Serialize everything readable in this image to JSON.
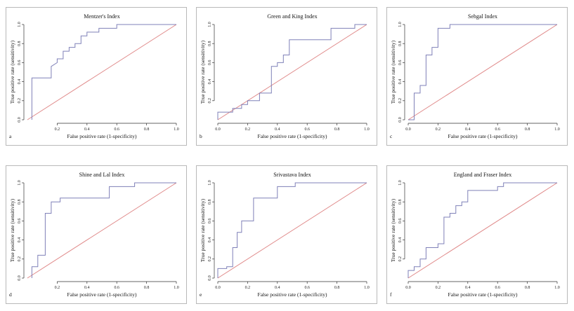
{
  "chart_data": [
    {
      "type": "line",
      "panel_label": "a",
      "title": "Mentzer's Index",
      "xlabel": "False positive rate (1-specificity)",
      "ylabel": "True positive rate (sensitivity)",
      "xlim": [
        0,
        1
      ],
      "ylim": [
        0,
        1
      ],
      "xticks": [
        "0.2",
        "0.4",
        "0.6",
        "0.8",
        "1.0"
      ],
      "yticks": [
        "0.0",
        "0.2",
        "0.4",
        "0.6",
        "0.8",
        "1.0"
      ],
      "series": [
        {
          "color": "#7f80b8",
          "x": [
            0.03,
            0.03,
            0.16,
            0.16,
            0.2,
            0.2,
            0.24,
            0.24,
            0.28,
            0.28,
            0.32,
            0.32,
            0.36,
            0.36,
            0.4,
            0.4,
            0.48,
            0.48,
            0.6,
            0.6,
            0.72,
            0.72,
            0.84,
            0.84,
            1.0
          ],
          "y": [
            0.0,
            0.44,
            0.44,
            0.56,
            0.6,
            0.64,
            0.64,
            0.72,
            0.72,
            0.76,
            0.76,
            0.8,
            0.8,
            0.88,
            0.88,
            0.92,
            0.92,
            0.96,
            0.96,
            1.0,
            1.0,
            1.0,
            1.0,
            1.0,
            1.0
          ]
        },
        {
          "color": "#e08a8a",
          "x": [
            0,
            1
          ],
          "y": [
            0,
            1
          ]
        }
      ]
    },
    {
      "type": "line",
      "panel_label": "b",
      "title": "Green and King Index",
      "xlabel": "False positive rate (1-specificity)",
      "ylabel": "True positive rate (sensitivity)",
      "xlim": [
        0,
        1
      ],
      "ylim": [
        0,
        1
      ],
      "xticks": [
        "0.0",
        "0.2",
        "0.4",
        "0.6",
        "0.8",
        "1.0"
      ],
      "yticks": [
        "0.2",
        "0.4",
        "0.6",
        "0.8",
        "1.0"
      ],
      "series": [
        {
          "color": "#7f80b8",
          "x": [
            0.0,
            0.0,
            0.1,
            0.1,
            0.16,
            0.16,
            0.2,
            0.2,
            0.28,
            0.28,
            0.36,
            0.36,
            0.4,
            0.4,
            0.44,
            0.44,
            0.48,
            0.48,
            0.56,
            0.56,
            0.76,
            0.76,
            0.92,
            0.92,
            1.0
          ],
          "y": [
            0.0,
            0.08,
            0.08,
            0.12,
            0.12,
            0.16,
            0.16,
            0.2,
            0.2,
            0.28,
            0.28,
            0.56,
            0.56,
            0.6,
            0.6,
            0.68,
            0.68,
            0.84,
            0.84,
            0.84,
            0.84,
            0.96,
            0.96,
            1.0,
            1.0
          ]
        },
        {
          "color": "#e08a8a",
          "x": [
            0,
            1
          ],
          "y": [
            0,
            1
          ]
        }
      ]
    },
    {
      "type": "line",
      "panel_label": "c",
      "title": "Sehgal Index",
      "xlabel": "False positive rate (1-specificity)",
      "ylabel": "True positive rate (sensitivity)",
      "xlim": [
        0,
        1
      ],
      "ylim": [
        0,
        1
      ],
      "xticks": [
        "0.0",
        "0.2",
        "0.4",
        "0.6",
        "0.8",
        "1.0"
      ],
      "yticks": [
        "0.0",
        "0.2",
        "0.4",
        "0.6",
        "0.8",
        "1.0"
      ],
      "series": [
        {
          "color": "#7f80b8",
          "x": [
            0.0,
            0.04,
            0.04,
            0.08,
            0.08,
            0.12,
            0.12,
            0.16,
            0.16,
            0.2,
            0.2,
            0.28,
            0.28,
            1.0
          ],
          "y": [
            0.0,
            0.0,
            0.28,
            0.28,
            0.36,
            0.36,
            0.68,
            0.68,
            0.76,
            0.76,
            0.96,
            0.96,
            1.0,
            1.0
          ]
        },
        {
          "color": "#e08a8a",
          "x": [
            0,
            1
          ],
          "y": [
            0,
            1
          ]
        }
      ]
    },
    {
      "type": "line",
      "panel_label": "d",
      "title": "Shine and Lal Index",
      "xlabel": "False positive rate (1-specificity)",
      "ylabel": "True positive rate (sensitivity)",
      "xlim": [
        0,
        1
      ],
      "ylim": [
        0,
        1
      ],
      "xticks": [
        "0.2",
        "0.4",
        "0.6",
        "0.8",
        "1.0"
      ],
      "yticks": [
        "0.0",
        "0.2",
        "0.4",
        "0.6",
        "0.8",
        "1.0"
      ],
      "series": [
        {
          "color": "#7f80b8",
          "x": [
            0.03,
            0.03,
            0.07,
            0.07,
            0.12,
            0.12,
            0.16,
            0.16,
            0.22,
            0.22,
            0.27,
            0.27,
            0.55,
            0.55,
            0.72,
            0.72,
            1.0
          ],
          "y": [
            0.0,
            0.12,
            0.12,
            0.24,
            0.24,
            0.68,
            0.68,
            0.8,
            0.8,
            0.84,
            0.84,
            0.84,
            0.84,
            0.96,
            0.96,
            1.0,
            1.0
          ]
        },
        {
          "color": "#e08a8a",
          "x": [
            0,
            1
          ],
          "y": [
            0,
            1
          ]
        }
      ]
    },
    {
      "type": "line",
      "panel_label": "e",
      "title": "Srivastava Index",
      "xlabel": "False positive rate (1-specificity)",
      "ylabel": "True positive rate (sensitivity)",
      "xlim": [
        0,
        1
      ],
      "ylim": [
        0,
        1
      ],
      "xticks": [
        "0.0",
        "0.2",
        "0.4",
        "0.6",
        "0.8",
        "1.0"
      ],
      "yticks": [
        "0.0",
        "0.2",
        "0.4",
        "0.6",
        "0.8",
        "1.0"
      ],
      "series": [
        {
          "color": "#7f80b8",
          "x": [
            0.0,
            0.0,
            0.06,
            0.06,
            0.1,
            0.1,
            0.13,
            0.13,
            0.16,
            0.16,
            0.2,
            0.2,
            0.24,
            0.24,
            0.4,
            0.4,
            0.44,
            0.44,
            0.52,
            0.52,
            1.0
          ],
          "y": [
            0.0,
            0.1,
            0.1,
            0.12,
            0.12,
            0.32,
            0.32,
            0.48,
            0.48,
            0.6,
            0.6,
            0.6,
            0.6,
            0.84,
            0.84,
            0.96,
            0.96,
            0.96,
            0.96,
            1.0,
            1.0
          ]
        },
        {
          "color": "#e08a8a",
          "x": [
            0,
            1
          ],
          "y": [
            0,
            1
          ]
        }
      ]
    },
    {
      "type": "line",
      "panel_label": "f",
      "title": "England and Fraser Index",
      "xlabel": "False positive rate (1-specificity)",
      "ylabel": "True positive rate (sensitivity)",
      "xlim": [
        0,
        1
      ],
      "ylim": [
        0,
        1
      ],
      "xticks": [
        "0.0",
        "0.2",
        "0.4",
        "0.6",
        "0.8",
        "1.0"
      ],
      "yticks": [
        "0.2",
        "0.4",
        "0.6",
        "0.8",
        "1.0"
      ],
      "series": [
        {
          "color": "#7f80b8",
          "x": [
            0.0,
            0.0,
            0.04,
            0.04,
            0.08,
            0.08,
            0.12,
            0.12,
            0.2,
            0.2,
            0.24,
            0.24,
            0.28,
            0.28,
            0.32,
            0.32,
            0.36,
            0.36,
            0.4,
            0.4,
            0.6,
            0.6,
            0.64,
            0.64,
            0.8,
            0.8,
            1.0
          ],
          "y": [
            0.0,
            0.08,
            0.08,
            0.12,
            0.12,
            0.2,
            0.2,
            0.32,
            0.32,
            0.36,
            0.36,
            0.64,
            0.64,
            0.68,
            0.68,
            0.76,
            0.76,
            0.8,
            0.8,
            0.92,
            0.92,
            0.96,
            0.96,
            1.0,
            1.0,
            1.0,
            1.0
          ]
        },
        {
          "color": "#e08a8a",
          "x": [
            0,
            1
          ],
          "y": [
            0,
            1
          ]
        }
      ]
    }
  ]
}
